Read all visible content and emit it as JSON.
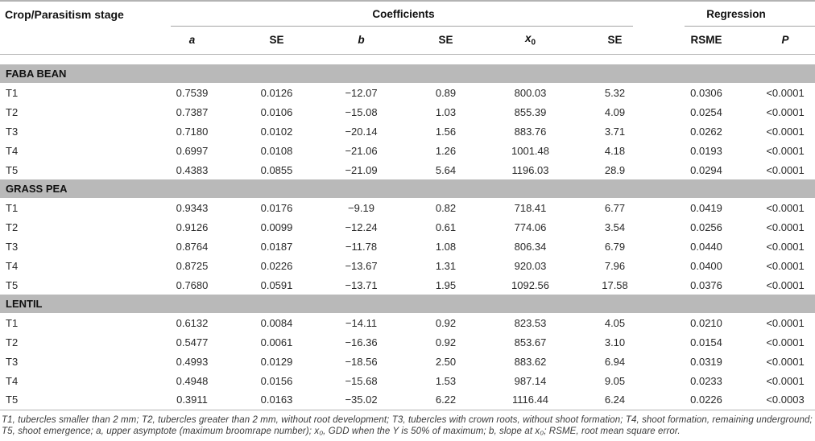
{
  "table": {
    "col1_header": "Crop/Parasitism stage",
    "groups": {
      "coefficients": "Coefficients",
      "regression": "Regression"
    },
    "sub_headers": [
      {
        "text": "a",
        "italic": true
      },
      {
        "text": "SE"
      },
      {
        "text": "b",
        "italic": true
      },
      {
        "text": "SE"
      },
      {
        "text": "x",
        "sub": "0",
        "italic": true
      },
      {
        "text": "SE"
      },
      {
        "text": "RSME"
      },
      {
        "text": "P",
        "italic": true
      }
    ],
    "sections": [
      {
        "name": "FABA BEAN",
        "rows": [
          {
            "stage": "T1",
            "values": [
              "0.7539",
              "0.0126",
              "−12.07",
              "0.89",
              "800.03",
              "5.32",
              "0.0306",
              "<0.0001"
            ]
          },
          {
            "stage": "T2",
            "values": [
              "0.7387",
              "0.0106",
              "−15.08",
              "1.03",
              "855.39",
              "4.09",
              "0.0254",
              "<0.0001"
            ]
          },
          {
            "stage": "T3",
            "values": [
              "0.7180",
              "0.0102",
              "−20.14",
              "1.56",
              "883.76",
              "3.71",
              "0.0262",
              "<0.0001"
            ]
          },
          {
            "stage": "T4",
            "values": [
              "0.6997",
              "0.0108",
              "−21.06",
              "1.26",
              "1001.48",
              "4.18",
              "0.0193",
              "<0.0001"
            ]
          },
          {
            "stage": "T5",
            "values": [
              "0.4383",
              "0.0855",
              "−21.09",
              "5.64",
              "1196.03",
              "28.9",
              "0.0294",
              "<0.0001"
            ]
          }
        ]
      },
      {
        "name": "GRASS PEA",
        "rows": [
          {
            "stage": "T1",
            "values": [
              "0.9343",
              "0.0176",
              "−9.19",
              "0.82",
              "718.41",
              "6.77",
              "0.0419",
              "<0.0001"
            ]
          },
          {
            "stage": "T2",
            "values": [
              "0.9126",
              "0.0099",
              "−12.24",
              "0.61",
              "774.06",
              "3.54",
              "0.0256",
              "<0.0001"
            ]
          },
          {
            "stage": "T3",
            "values": [
              "0.8764",
              "0.0187",
              "−11.78",
              "1.08",
              "806.34",
              "6.79",
              "0.0440",
              "<0.0001"
            ]
          },
          {
            "stage": "T4",
            "values": [
              "0.8725",
              "0.0226",
              "−13.67",
              "1.31",
              "920.03",
              "7.96",
              "0.0400",
              "<0.0001"
            ]
          },
          {
            "stage": "T5",
            "values": [
              "0.7680",
              "0.0591",
              "−13.71",
              "1.95",
              "1092.56",
              "17.58",
              "0.0376",
              "<0.0001"
            ]
          }
        ]
      },
      {
        "name": "LENTIL",
        "rows": [
          {
            "stage": "T1",
            "values": [
              "0.6132",
              "0.0084",
              "−14.11",
              "0.92",
              "823.53",
              "4.05",
              "0.0210",
              "<0.0001"
            ]
          },
          {
            "stage": "T2",
            "values": [
              "0.5477",
              "0.0061",
              "−16.36",
              "0.92",
              "853.67",
              "3.10",
              "0.0154",
              "<0.0001"
            ]
          },
          {
            "stage": "T3",
            "values": [
              "0.4993",
              "0.0129",
              "−18.56",
              "2.50",
              "883.62",
              "6.94",
              "0.0319",
              "<0.0001"
            ]
          },
          {
            "stage": "T4",
            "values": [
              "0.4948",
              "0.0156",
              "−15.68",
              "1.53",
              "987.14",
              "9.05",
              "0.0233",
              "<0.0001"
            ]
          },
          {
            "stage": "T5",
            "values": [
              "0.3911",
              "0.0163",
              "−35.02",
              "6.22",
              "1116.44",
              "6.24",
              "0.0226",
              "<0.0003"
            ]
          }
        ]
      }
    ],
    "footnote": "T1, tubercles smaller than 2 mm; T2, tubercles greater than 2 mm, without root development; T3, tubercles with crown roots, without shoot formation; T4, shoot formation, remaining underground; T5, shoot emergence; a, upper asymptote (maximum broomrape number); x₀, GDD when the Y is 50% of maximum; b, slope at x₀; RSME, root mean square error."
  }
}
